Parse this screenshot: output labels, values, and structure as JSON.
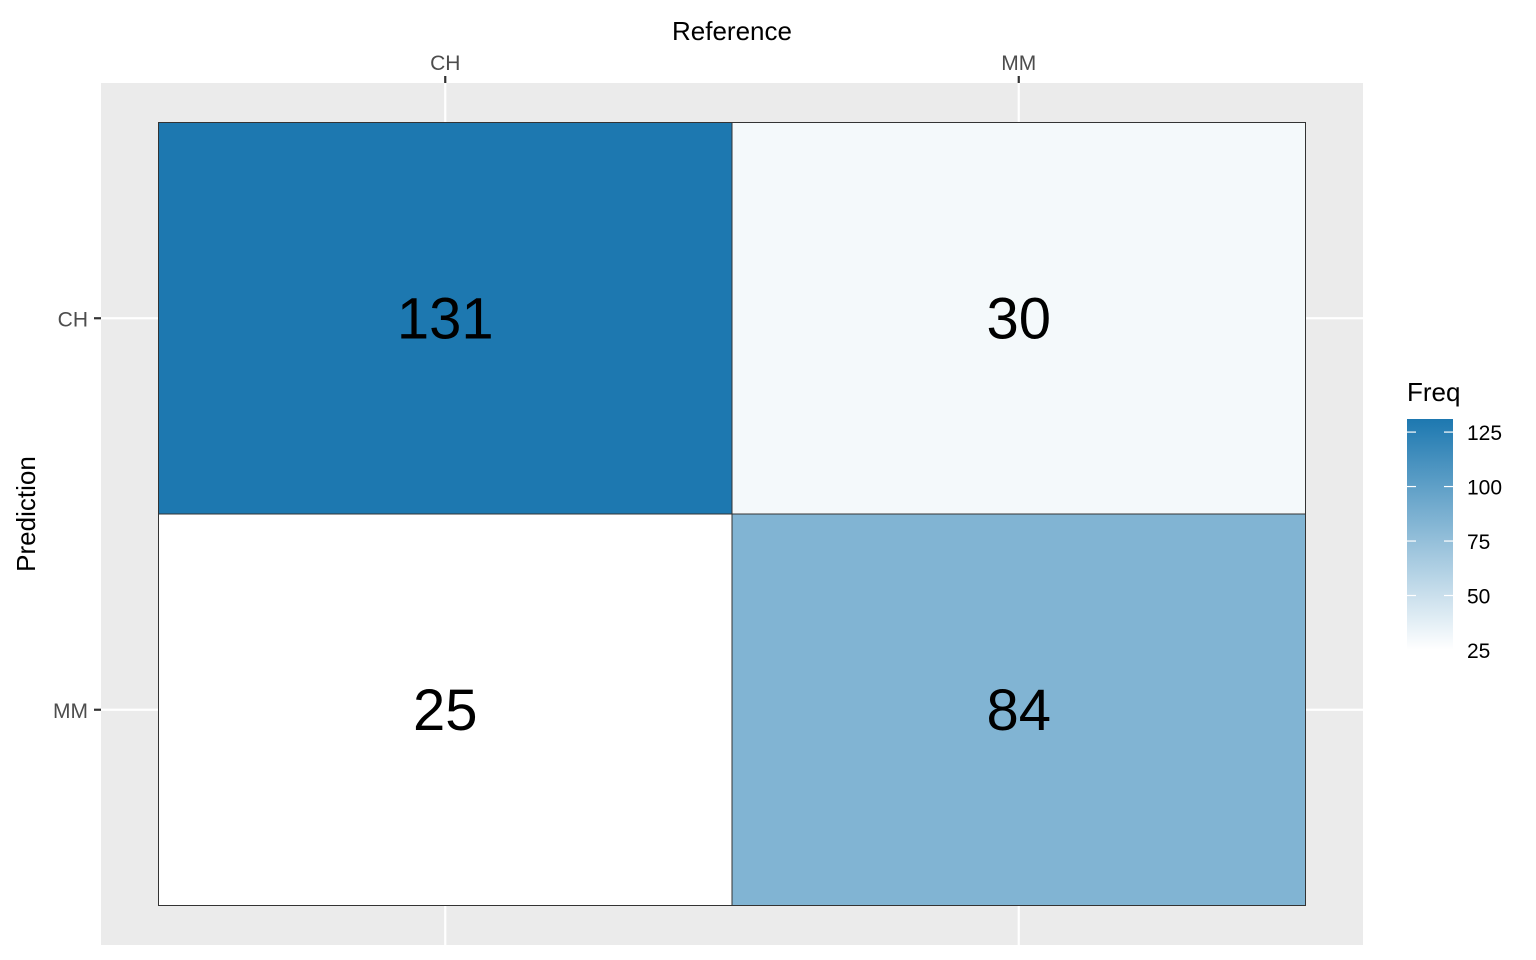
{
  "chart_data": {
    "type": "heatmap",
    "title": "",
    "xlabel": "Reference",
    "ylabel": "Prediction",
    "x_categories": [
      "CH",
      "MM"
    ],
    "y_categories": [
      "CH",
      "MM"
    ],
    "x_axis_position": "top",
    "cells": [
      {
        "x": "CH",
        "y": "CH",
        "value": 131,
        "label": "131"
      },
      {
        "x": "MM",
        "y": "CH",
        "value": 30,
        "label": "30"
      },
      {
        "x": "CH",
        "y": "MM",
        "value": 25,
        "label": "25"
      },
      {
        "x": "MM",
        "y": "MM",
        "value": 84,
        "label": "84"
      }
    ],
    "legend": {
      "title": "Freq",
      "placement": "right",
      "ticks": [
        125,
        100,
        75,
        50,
        25
      ],
      "tick_labels": [
        "125",
        "100",
        "75",
        "50",
        "25"
      ],
      "low_color": "#ffffff",
      "high_color": "#1d78b0",
      "value_range": [
        25,
        131
      ]
    },
    "grid": true,
    "panel_color": "#ebebeb"
  }
}
